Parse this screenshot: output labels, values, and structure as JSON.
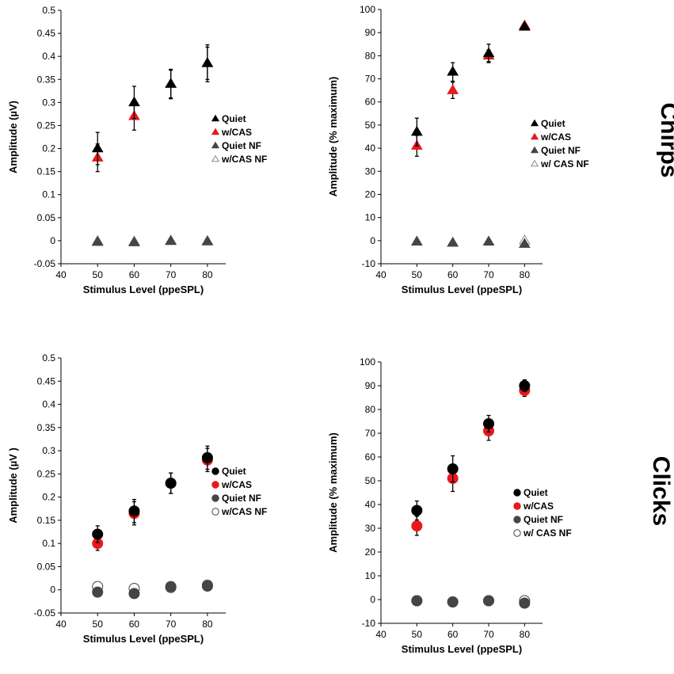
{
  "colors": {
    "black": "#000000",
    "red": "#e8191c",
    "gray": "#454545",
    "light_gray": "#8a8a8a",
    "white": "#ffffff"
  },
  "row_labels": {
    "chirps": "Chirps",
    "clicks": "Clicks"
  },
  "chart_data": [
    {
      "type": "scatter",
      "title": "",
      "xlabel": "Stimulus Level (ppeSPL)",
      "ylabel": "Amplitude (µV)",
      "xlim": [
        40,
        85
      ],
      "ylim": [
        -0.05,
        0.5
      ],
      "xticks": [
        40,
        50,
        60,
        70,
        80
      ],
      "yticks": [
        -0.05,
        0,
        0.05,
        0.1,
        0.15,
        0.2,
        0.25,
        0.3,
        0.35,
        0.4,
        0.45,
        0.5
      ],
      "ytick_labels": [
        "-0.05",
        "0",
        "0.05",
        "0.1",
        "0.15",
        "0.2",
        "0.25",
        "0.3",
        "0.35",
        "0.4",
        "0.45",
        "0.5"
      ],
      "legend_position": "right",
      "series": [
        {
          "name": "Quiet",
          "marker": "triangle",
          "color": "#000000",
          "filled": true,
          "x": [
            50,
            60,
            70,
            80
          ],
          "y": [
            0.2,
            0.3,
            0.34,
            0.385
          ],
          "err": [
            0.035,
            0.035,
            0.032,
            0.04
          ]
        },
        {
          "name": "w/CAS",
          "marker": "triangle",
          "color": "#e8191c",
          "filled": true,
          "x": [
            50,
            60,
            70,
            80
          ],
          "y": [
            0.18,
            0.27,
            0.34,
            0.385
          ],
          "err": [
            0.03,
            0.03,
            0.03,
            0.035
          ]
        },
        {
          "name": "Quiet NF",
          "marker": "triangle",
          "color": "#454545",
          "filled": true,
          "x": [
            50,
            60,
            70,
            80
          ],
          "y": [
            -0.003,
            -0.004,
            -0.001,
            -0.002
          ],
          "err": [
            0,
            0,
            0,
            0
          ]
        },
        {
          "name": "w/CAS NF",
          "marker": "triangle",
          "color": "#8a8a8a",
          "filled": false,
          "x": [
            50,
            60,
            70,
            80
          ],
          "y": [
            -0.001,
            -0.002,
            0.0,
            -0.001
          ],
          "err": [
            0,
            0,
            0,
            0
          ]
        }
      ]
    },
    {
      "type": "scatter",
      "title": "",
      "xlabel": "Stimulus Level (ppeSPL)",
      "ylabel": "Amplitude (% maximum)",
      "xlim": [
        40,
        85
      ],
      "ylim": [
        -10,
        100
      ],
      "xticks": [
        40,
        50,
        60,
        70,
        80
      ],
      "yticks": [
        -10,
        0,
        10,
        20,
        30,
        40,
        50,
        60,
        70,
        80,
        90,
        100
      ],
      "ytick_labels": [
        "-10",
        "0",
        "10",
        "20",
        "30",
        "40",
        "50",
        "60",
        "70",
        "80",
        "90",
        "100"
      ],
      "legend_position": "right",
      "series": [
        {
          "name": "Quiet",
          "marker": "triangle",
          "color": "#000000",
          "filled": true,
          "x": [
            50,
            60,
            70,
            80
          ],
          "y": [
            47,
            73,
            81,
            92.5
          ],
          "err": [
            6,
            4,
            4,
            1
          ]
        },
        {
          "name": "w/CAS",
          "marker": "triangle",
          "color": "#e8191c",
          "filled": true,
          "x": [
            50,
            60,
            70,
            80
          ],
          "y": [
            41,
            65,
            80,
            93
          ],
          "err": [
            4.5,
            3.5,
            2.5,
            1
          ]
        },
        {
          "name": "Quiet NF",
          "marker": "triangle",
          "color": "#454545",
          "filled": true,
          "x": [
            50,
            60,
            70,
            80
          ],
          "y": [
            -0.5,
            -1,
            -0.5,
            -1.5
          ],
          "err": [
            0,
            0,
            0,
            0
          ]
        },
        {
          "name": "w/ CAS NF",
          "marker": "triangle",
          "color": "#8a8a8a",
          "filled": false,
          "x": [
            50,
            60,
            70,
            80
          ],
          "y": [
            -0.5,
            -1,
            -0.5,
            0
          ],
          "err": [
            0,
            0,
            0,
            0
          ]
        }
      ]
    },
    {
      "type": "scatter",
      "title": "",
      "xlabel": "Stimulus Level (ppeSPL)",
      "ylabel": "Amplitude (µV )",
      "xlim": [
        40,
        85
      ],
      "ylim": [
        -0.05,
        0.5
      ],
      "xticks": [
        40,
        50,
        60,
        70,
        80
      ],
      "yticks": [
        -0.05,
        0,
        0.05,
        0.1,
        0.15,
        0.2,
        0.25,
        0.3,
        0.35,
        0.4,
        0.45,
        0.5
      ],
      "ytick_labels": [
        "-0.05",
        "0",
        "0.05",
        "0.1",
        "0.15",
        "0.2",
        "0.25",
        "0.3",
        "0.35",
        "0.4",
        "0.45",
        "0.5"
      ],
      "legend_position": "right",
      "series": [
        {
          "name": "Quiet",
          "marker": "circle",
          "color": "#000000",
          "filled": true,
          "x": [
            50,
            60,
            70,
            80
          ],
          "y": [
            0.12,
            0.17,
            0.23,
            0.285
          ],
          "err": [
            0.018,
            0.025,
            0.022,
            0.025
          ]
        },
        {
          "name": "w/CAS",
          "marker": "circle",
          "color": "#e8191c",
          "filled": true,
          "x": [
            50,
            60,
            70,
            80
          ],
          "y": [
            0.1,
            0.165,
            0.23,
            0.28
          ],
          "err": [
            0.015,
            0.025,
            0.022,
            0.025
          ]
        },
        {
          "name": "Quiet NF",
          "marker": "circle",
          "color": "#454545",
          "filled": true,
          "x": [
            50,
            60,
            70,
            80
          ],
          "y": [
            -0.005,
            -0.008,
            0.007,
            0.008
          ],
          "err": [
            0,
            0,
            0,
            0
          ]
        },
        {
          "name": "w/CAS NF",
          "marker": "circle",
          "color": "#454545",
          "filled": false,
          "x": [
            50,
            60,
            70,
            80
          ],
          "y": [
            0.007,
            0.003,
            0.005,
            0.01
          ],
          "err": [
            0,
            0,
            0,
            0
          ]
        }
      ]
    },
    {
      "type": "scatter",
      "title": "",
      "xlabel": "Stimulus Level (ppeSPL)",
      "ylabel": "Amplitude (% maximum)",
      "xlim": [
        40,
        85
      ],
      "ylim": [
        -10,
        100
      ],
      "xticks": [
        40,
        50,
        60,
        70,
        80
      ],
      "yticks": [
        -10,
        0,
        10,
        20,
        30,
        40,
        50,
        60,
        70,
        80,
        90,
        100
      ],
      "ytick_labels": [
        "-10",
        "0",
        "10",
        "20",
        "30",
        "40",
        "50",
        "60",
        "70",
        "80",
        "90",
        "100"
      ],
      "legend_position": "right",
      "series": [
        {
          "name": "Quiet",
          "marker": "circle",
          "color": "#000000",
          "filled": true,
          "x": [
            50,
            60,
            70,
            80
          ],
          "y": [
            37.5,
            55,
            74,
            90
          ],
          "err": [
            4,
            5.5,
            3.5,
            2.5
          ]
        },
        {
          "name": "w/CAS",
          "marker": "circle",
          "color": "#e8191c",
          "filled": true,
          "x": [
            50,
            60,
            70,
            80
          ],
          "y": [
            31,
            51,
            71,
            88
          ],
          "err": [
            4,
            5.5,
            4,
            2.5
          ]
        },
        {
          "name": "Quiet NF",
          "marker": "circle",
          "color": "#454545",
          "filled": true,
          "x": [
            50,
            60,
            70,
            80
          ],
          "y": [
            -0.5,
            -1,
            -0.5,
            -1.5
          ],
          "err": [
            0,
            0,
            0,
            0
          ]
        },
        {
          "name": "w/ CAS NF",
          "marker": "circle",
          "color": "#454545",
          "filled": false,
          "x": [
            50,
            60,
            70,
            80
          ],
          "y": [
            -0.5,
            -1,
            -0.5,
            -0.5
          ],
          "err": [
            0,
            0,
            0,
            0
          ]
        }
      ]
    }
  ]
}
